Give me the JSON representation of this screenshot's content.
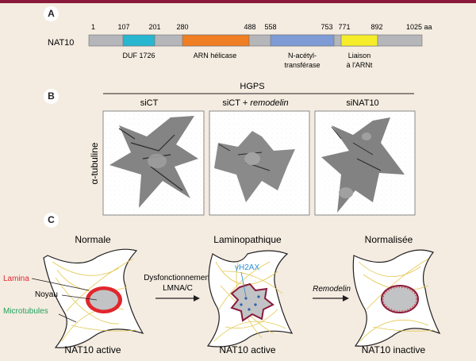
{
  "colors": {
    "top_bar": "#8a1a3c",
    "background": "#f4ece1",
    "bar_grey": "#b4b6b9",
    "duf": "#29b6d1",
    "helicase": "#f07e22",
    "acetyltransferase": "#7e9bd5",
    "trna": "#f5ec2a",
    "lamina": "#e0272d",
    "gammaH2AX": "#2a8fd6",
    "microtubules": "#20a05a",
    "tubulin_lines": "#e3c84f",
    "nucleus": "#c2c3c5"
  },
  "panel_a": {
    "letter": "A",
    "protein": "NAT10",
    "positions": [
      "1",
      "107",
      "201",
      "280",
      "488",
      "558",
      "753",
      "771",
      "892",
      "1025 aa"
    ],
    "domains": [
      {
        "name": "duf",
        "label": "DUF 1726"
      },
      {
        "name": "helicase",
        "label": "ARN hélicase"
      },
      {
        "name": "acetyl",
        "label_line1": "N-acétyl-",
        "label_line2": "transférase"
      },
      {
        "name": "trna",
        "label_line1": "Liaison",
        "label_line2": "à l'ARNt"
      }
    ]
  },
  "panel_b": {
    "letter": "B",
    "group_label": "HGPS",
    "y_label": "α-tubuline",
    "columns": [
      {
        "name": "sict",
        "label": "siCT"
      },
      {
        "name": "remodelin",
        "label_prefix": "siCT + ",
        "label_italic": "remodelin"
      },
      {
        "name": "sinat10",
        "label": "siNAT10"
      }
    ]
  },
  "panel_c": {
    "letter": "C",
    "cells": [
      {
        "name": "normal",
        "title": "Normale",
        "status": "NAT10 active"
      },
      {
        "name": "laminopathic",
        "title": "Laminopathique",
        "status": "NAT10 active"
      },
      {
        "name": "normalized",
        "title": "Normalisée",
        "status": "NAT10 inactive"
      }
    ],
    "labels": {
      "lamina": "Lamina",
      "noyau": "Noyau",
      "microtubules": "Microtubules",
      "gammaH2AX": "γH2AX"
    },
    "arrow1_line1": "Dysfonctionnement",
    "arrow1_line2": "LMNA/C",
    "arrow2_label": "Remodelin"
  }
}
